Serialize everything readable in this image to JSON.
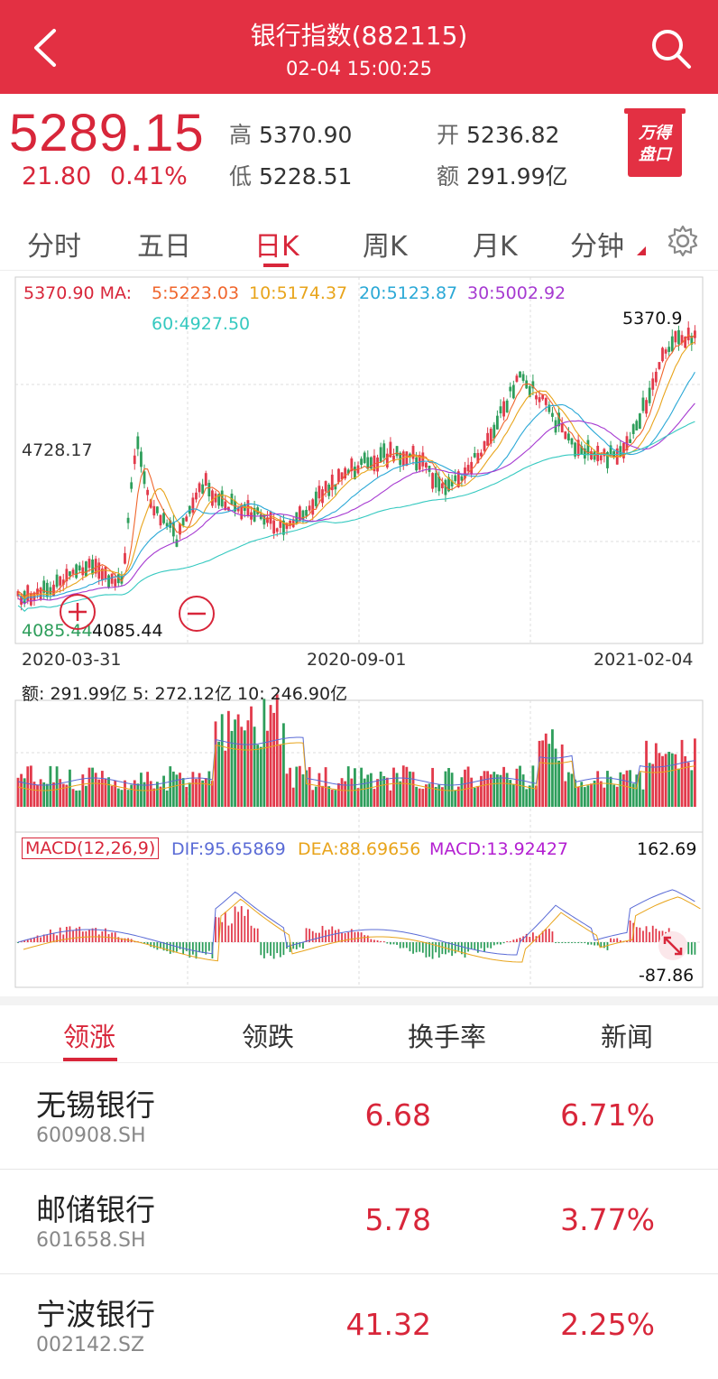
{
  "header": {
    "title": "银行指数(882115)",
    "time": "02-04 15:00:25"
  },
  "quote": {
    "price": "5289.15",
    "change": "21.80",
    "change_pct": "0.41%",
    "high_label": "高",
    "high": "5370.90",
    "low_label": "低",
    "low": "5228.51",
    "open_label": "开",
    "open": "5236.82",
    "amount_label": "额",
    "amount": "291.99亿",
    "logo_line1": "万得",
    "logo_line2": "盘口"
  },
  "tabs": [
    "分时",
    "五日",
    "日K",
    "周K",
    "月K",
    "分钟"
  ],
  "active_tab": 2,
  "chart": {
    "ma_line1_prefix": "5370.90  MA:",
    "ma5": "5:5223.03",
    "ma10": "10:5174.37",
    "ma20": "20:5123.87",
    "ma30": "30:5002.92",
    "ma60": "60:4927.50",
    "max_label": "5370.9",
    "mid_label": "4728.17",
    "min_left": "4085.44",
    "min_right": "4085.44",
    "date_start": "2020-03-31",
    "date_mid": "2020-09-01",
    "date_end": "2021-02-04",
    "volume_legend": "额: 291.99亿 5: 272.12亿 10: 246.90亿",
    "macd_title": "MACD(12,26,9)",
    "dif": "DIF:95.65869",
    "dea": "DEA:88.69656",
    "macd": "MACD:13.92427",
    "macd_max": "162.69",
    "macd_min": "-87.86"
  },
  "colors": {
    "up": "#e23a4b",
    "down": "#2e9e5b",
    "ma5": "#f0662d",
    "ma10": "#e8a41b",
    "ma20": "#2aa8d6",
    "ma30": "#a63ad1",
    "ma60": "#35c9c0",
    "brand": "#e33043"
  },
  "bottom_tabs": [
    "领涨",
    "领跌",
    "换手率",
    "新闻"
  ],
  "stocks": [
    {
      "name": "无锡银行",
      "code": "600908.SH",
      "price": "6.68",
      "pct": "6.71%"
    },
    {
      "name": "邮储银行",
      "code": "601658.SH",
      "price": "5.78",
      "pct": "3.77%"
    },
    {
      "name": "宁波银行",
      "code": "002142.SZ",
      "price": "41.32",
      "pct": "2.25%"
    }
  ]
}
